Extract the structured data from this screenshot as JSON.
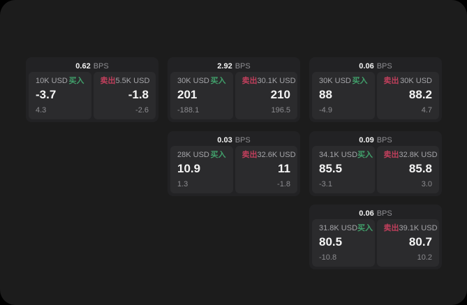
{
  "labels": {
    "bps_suffix": "BPS",
    "buy": "买入",
    "sell": "卖出"
  },
  "colors": {
    "outer_background": "#000000",
    "surface_background": "#1c1c1c",
    "card_background": "#222224",
    "panel_background": "#2b2b2d",
    "buy_green": "#41a06b",
    "sell_red": "#c03f5c",
    "primary_text": "#f5f5f5",
    "muted_text": "#8c8c90"
  },
  "cards": [
    {
      "bps": "0.62",
      "buy": {
        "amount": "10K USD",
        "value": "-3.7",
        "sub": "4.3"
      },
      "sell": {
        "amount": "5.5K USD",
        "value": "-1.8",
        "sub": "-2.6"
      }
    },
    {
      "bps": "2.92",
      "buy": {
        "amount": "30K USD",
        "value": "201",
        "sub": "-188.1"
      },
      "sell": {
        "amount": "30.1K USD",
        "value": "210",
        "sub": "196.5"
      }
    },
    {
      "bps": "0.06",
      "buy": {
        "amount": "30K USD",
        "value": "88",
        "sub": "-4.9"
      },
      "sell": {
        "amount": "30K USD",
        "value": "88.2",
        "sub": "4.7"
      }
    },
    {
      "bps": "0.03",
      "buy": {
        "amount": "28K USD",
        "value": "10.9",
        "sub": "1.3"
      },
      "sell": {
        "amount": "32.6K USD",
        "value": "11",
        "sub": "-1.8"
      }
    },
    {
      "bps": "0.09",
      "buy": {
        "amount": "34.1K USD",
        "value": "85.5",
        "sub": "-3.1"
      },
      "sell": {
        "amount": "32.8K USD",
        "value": "85.8",
        "sub": "3.0"
      }
    },
    {
      "bps": "0.06",
      "buy": {
        "amount": "31.8K USD",
        "value": "80.5",
        "sub": "-10.8"
      },
      "sell": {
        "amount": "39.1K USD",
        "value": "80.7",
        "sub": "10.2"
      }
    }
  ]
}
